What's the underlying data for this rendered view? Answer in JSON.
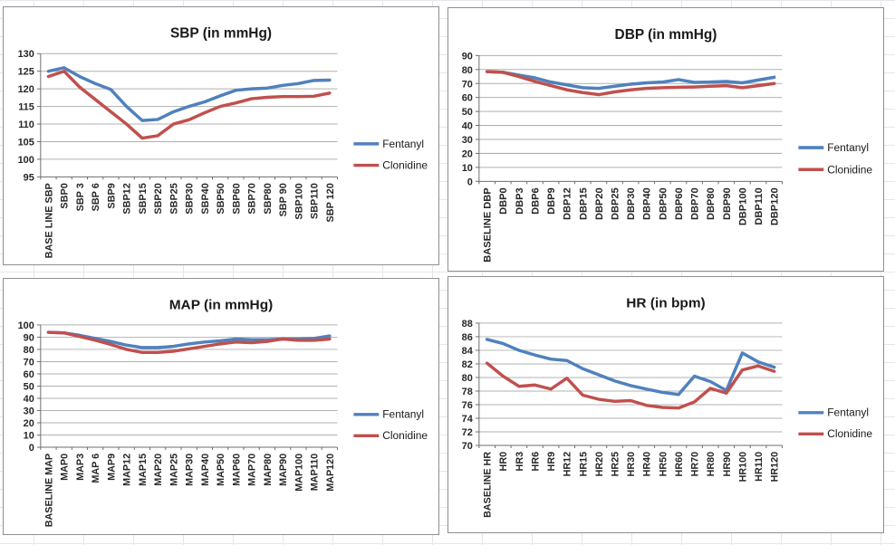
{
  "chart_data": [
    {
      "id": "sbp",
      "type": "line",
      "title": "SBP (in mmHg)",
      "ylim": [
        95,
        130
      ],
      "ystep": 5,
      "grid": true,
      "legend_position": "right",
      "categories": [
        "BASE LINE SBP",
        "SBP0",
        "SBP 3",
        "SBP 6",
        "SBP9",
        "SBP12",
        "SBP15",
        "SBP20",
        "SBP25",
        "SBP30",
        "SBP40",
        "SBP50",
        "SBP60",
        "SBP70",
        "SBP80",
        "SBP 90",
        "SBP100",
        "SBP110",
        "SBP 120"
      ],
      "series": [
        {
          "name": "Fentanyl",
          "color": "#4F81BD",
          "values": [
            125,
            126,
            123.5,
            121.5,
            119.8,
            115,
            111,
            111.3,
            113.5,
            115,
            116.3,
            118,
            119.6,
            120,
            120.2,
            121,
            121.5,
            122.4,
            122.5
          ]
        },
        {
          "name": "Clonidine",
          "color": "#C0504D",
          "values": [
            123.5,
            125,
            120.5,
            117,
            113.5,
            110,
            106,
            106.7,
            110,
            111.2,
            113.2,
            115,
            116,
            117.2,
            117.6,
            117.8,
            117.8,
            117.9,
            118.8
          ]
        }
      ]
    },
    {
      "id": "dbp",
      "type": "line",
      "title": "DBP (in mmHg)",
      "ylim": [
        0,
        90
      ],
      "ystep": 10,
      "grid": true,
      "legend_position": "right",
      "categories": [
        "BASELINE DBP",
        "DBP0",
        "DBP3",
        "DBP6",
        "DBP9",
        "DBP12",
        "DBP15",
        "DBP20",
        "DBP25",
        "DBP30",
        "DBP40",
        "DBP50",
        "DBP60",
        "DBP70",
        "DBP80",
        "DBP90",
        "DBP100",
        "DBP110",
        "DBP120"
      ],
      "series": [
        {
          "name": "Fentanyl",
          "color": "#4F81BD",
          "values": [
            78.5,
            78,
            76,
            74,
            71,
            69,
            67,
            66.5,
            68,
            69.5,
            70.5,
            71,
            72.8,
            70.8,
            71,
            71.5,
            70.5,
            72.5,
            74.5
          ]
        },
        {
          "name": "Clonidine",
          "color": "#C0504D",
          "values": [
            78.5,
            78,
            75,
            71.5,
            68.5,
            65.5,
            63.5,
            62,
            64,
            65.5,
            66.5,
            67,
            67.3,
            67.5,
            68,
            68.5,
            67,
            68.5,
            70
          ]
        }
      ]
    },
    {
      "id": "map",
      "type": "line",
      "title": "MAP (in mmHg)",
      "ylim": [
        0,
        100
      ],
      "ystep": 10,
      "grid": true,
      "legend_position": "right",
      "categories": [
        "BASELINE MAP",
        "MAP0",
        "MAP3",
        "MAP 6",
        "MAP9",
        "MAP12",
        "MAP15",
        "MAP20",
        "MAP25",
        "MAP30",
        "MAP40",
        "MAP50",
        "MAP60",
        "MAP70",
        "MAP80",
        "MAP90",
        "MAP100",
        "MAP110",
        "MAP120"
      ],
      "series": [
        {
          "name": "Fentanyl",
          "color": "#4F81BD",
          "values": [
            94,
            93.5,
            91.5,
            89,
            86.5,
            83.5,
            81.5,
            81.5,
            82.5,
            84.5,
            86,
            87,
            88.5,
            88,
            88,
            88.5,
            88.5,
            89,
            91
          ]
        },
        {
          "name": "Clonidine",
          "color": "#C0504D",
          "values": [
            94,
            93.5,
            90.5,
            87.5,
            84,
            80,
            77.5,
            77.5,
            78.5,
            80.5,
            82.5,
            84.5,
            86,
            85.5,
            86.5,
            88.5,
            87.5,
            87.5,
            88.5
          ]
        }
      ]
    },
    {
      "id": "hr",
      "type": "line",
      "title": "HR (in bpm)",
      "ylim": [
        70,
        88
      ],
      "ystep": 2,
      "grid": true,
      "legend_position": "right",
      "categories": [
        "BASELINE HR",
        "HR0",
        "HR3",
        "HR6",
        "HR9",
        "HR12",
        "HR15",
        "HR20",
        "HR25",
        "HR30",
        "HR40",
        "HR50",
        "HR60",
        "HR70",
        "HR80",
        "HR90",
        "HR100",
        "HR110",
        "HR120"
      ],
      "series": [
        {
          "name": "Fentanyl",
          "color": "#4F81BD",
          "values": [
            85.6,
            85,
            84,
            83.3,
            82.7,
            82.5,
            81.3,
            80.4,
            79.5,
            78.8,
            78.3,
            77.8,
            77.5,
            80.2,
            79.4,
            78.1,
            83.6,
            82.3,
            81.5
          ]
        },
        {
          "name": "Clonidine",
          "color": "#C0504D",
          "values": [
            82.1,
            80.2,
            78.7,
            78.9,
            78.3,
            79.9,
            77.4,
            76.8,
            76.5,
            76.6,
            75.9,
            75.6,
            75.5,
            76.4,
            78.4,
            77.7,
            81.1,
            81.7,
            80.9
          ]
        }
      ]
    }
  ],
  "style_colors": {
    "series_blue": "#4F81BD",
    "series_red": "#C0504D",
    "gridline": "#b0b0b0",
    "axis_line": "#6e6e6e",
    "chart_border": "#8f8f8f",
    "sheet_grid": "#e3e6ec"
  }
}
